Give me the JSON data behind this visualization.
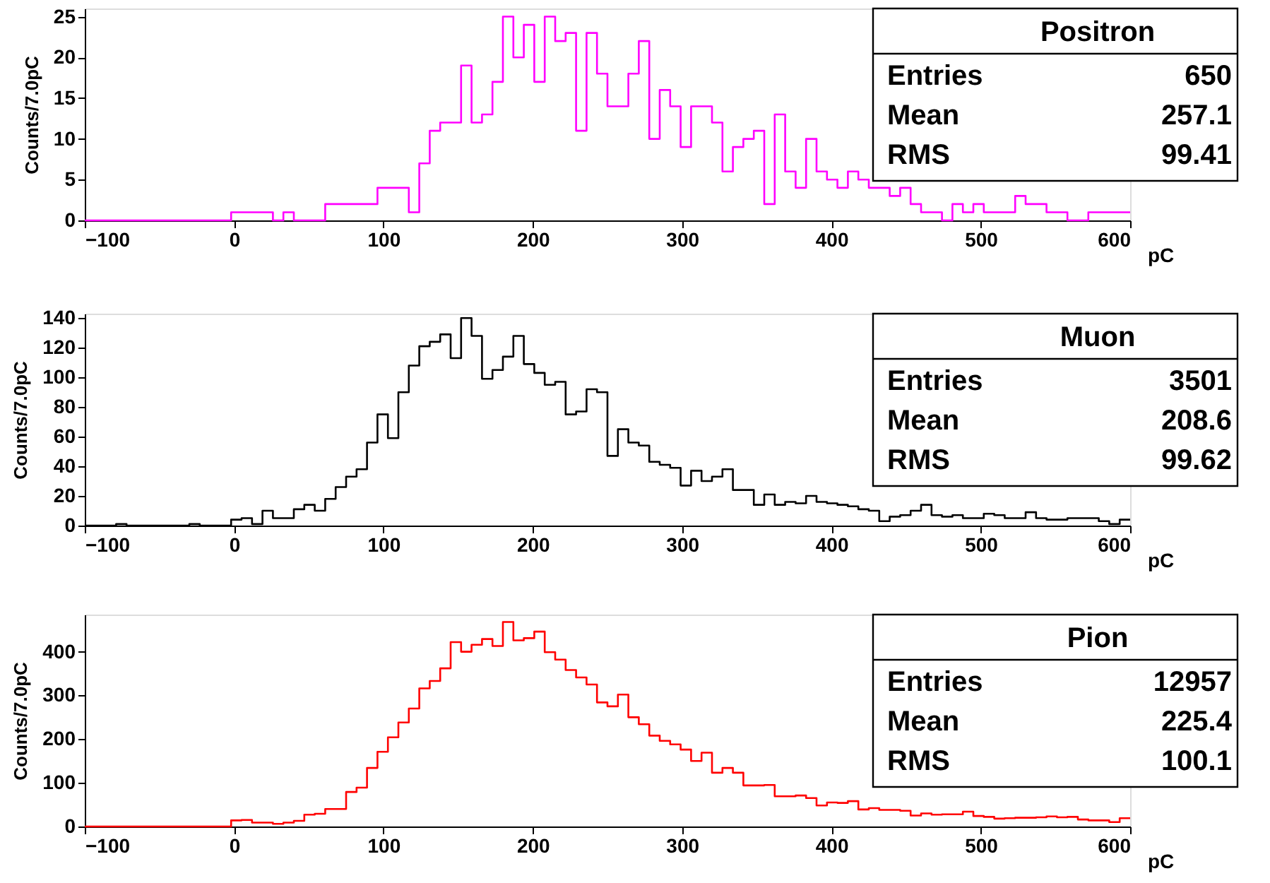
{
  "chart_data": [
    {
      "type": "histogram",
      "title": "Positron",
      "xlabel": "pC",
      "ylabel": "Counts/7.0pC",
      "color": "#ff00ff",
      "bins": [
        -100,
        -93,
        -86,
        -79,
        -72,
        -65,
        -58,
        -51,
        -44,
        -37,
        -30,
        -23,
        -16,
        -9,
        -2,
        5,
        12,
        19,
        26,
        33,
        40,
        47,
        54,
        61,
        68,
        75,
        82,
        89,
        96,
        103,
        110,
        117,
        124,
        131,
        138,
        145,
        152,
        159,
        166,
        173,
        180,
        187,
        194,
        201,
        208,
        215,
        222,
        229,
        236,
        243,
        250,
        257,
        264,
        271,
        278,
        285,
        292,
        299,
        306,
        313,
        320,
        327,
        334,
        341,
        348,
        355,
        362,
        369,
        376,
        383,
        390,
        397,
        404,
        411,
        418,
        425,
        432,
        439,
        446,
        453,
        460,
        467,
        474,
        481,
        488,
        495,
        502,
        509,
        516,
        523,
        530,
        537,
        544,
        551,
        558,
        565,
        572,
        579,
        586,
        593,
        600
      ],
      "values": [
        0,
        0,
        0,
        0,
        0,
        0,
        0,
        0,
        0,
        0,
        0,
        0,
        0,
        0,
        1,
        1,
        1,
        1,
        0,
        1,
        0,
        0,
        0,
        2,
        2,
        2,
        2,
        2,
        4,
        4,
        4,
        1,
        7,
        11,
        12,
        12,
        19,
        12,
        13,
        17,
        25,
        20,
        24,
        17,
        25,
        22,
        23,
        11,
        23,
        18,
        14,
        14,
        18,
        22,
        10,
        16,
        14,
        9,
        14,
        14,
        12,
        6,
        9,
        10,
        11,
        2,
        13,
        6,
        4,
        10,
        6,
        5,
        4,
        6,
        5,
        4,
        4,
        3,
        4,
        2,
        1,
        1,
        0,
        2,
        1,
        2,
        1,
        1,
        1,
        3,
        2,
        2,
        1,
        1,
        0,
        0,
        1,
        1,
        1,
        1
      ],
      "xlim": [
        -100,
        600
      ],
      "xticks": [
        -100,
        0,
        100,
        200,
        300,
        400,
        500,
        600
      ],
      "ylim": [
        0,
        26
      ],
      "yticks": [
        0,
        5,
        10,
        15,
        20,
        25
      ],
      "annotations": [
        "Entries",
        "650",
        "Mean",
        "257.1",
        "RMS",
        "99.41"
      ]
    },
    {
      "type": "histogram",
      "title": "Muon",
      "xlabel": "pC",
      "ylabel": "Counts/7.0pC",
      "color": "#000000",
      "bins": [
        -100,
        -93,
        -86,
        -79,
        -72,
        -65,
        -58,
        -51,
        -44,
        -37,
        -30,
        -23,
        -16,
        -9,
        -2,
        5,
        12,
        19,
        26,
        33,
        40,
        47,
        54,
        61,
        68,
        75,
        82,
        89,
        96,
        103,
        110,
        117,
        124,
        131,
        138,
        145,
        152,
        159,
        166,
        173,
        180,
        187,
        194,
        201,
        208,
        215,
        222,
        229,
        236,
        243,
        250,
        257,
        264,
        271,
        278,
        285,
        292,
        299,
        306,
        313,
        320,
        327,
        334,
        341,
        348,
        355,
        362,
        369,
        376,
        383,
        390,
        397,
        404,
        411,
        418,
        425,
        432,
        439,
        446,
        453,
        460,
        467,
        474,
        481,
        488,
        495,
        502,
        509,
        516,
        523,
        530,
        537,
        544,
        551,
        558,
        565,
        572,
        579,
        586,
        593,
        600
      ],
      "values": [
        0,
        0,
        0,
        1,
        0,
        0,
        0,
        0,
        0,
        0,
        1,
        0,
        0,
        0,
        4,
        5,
        1,
        10,
        5,
        5,
        11,
        14,
        10,
        18,
        26,
        33,
        38,
        56,
        75,
        59,
        90,
        108,
        121,
        124,
        129,
        113,
        140,
        128,
        99,
        105,
        114,
        128,
        109,
        103,
        95,
        97,
        75,
        77,
        92,
        90,
        47,
        65,
        56,
        54,
        43,
        41,
        39,
        27,
        37,
        30,
        33,
        38,
        24,
        24,
        14,
        21,
        14,
        16,
        15,
        20,
        16,
        15,
        14,
        13,
        11,
        10,
        3,
        6,
        7,
        10,
        14,
        7,
        6,
        7,
        5,
        5,
        8,
        7,
        5,
        5,
        9,
        5,
        4,
        4,
        5,
        5,
        5,
        3,
        1,
        4
      ],
      "xlim": [
        -100,
        600
      ],
      "xticks": [
        -100,
        0,
        100,
        200,
        300,
        400,
        500,
        600
      ],
      "ylim": [
        0,
        143
      ],
      "yticks": [
        0,
        20,
        40,
        60,
        80,
        100,
        120,
        140
      ],
      "annotations": [
        "Entries",
        "3501",
        "Mean",
        "208.6",
        "RMS",
        "99.62"
      ]
    },
    {
      "type": "histogram",
      "title": "Pion",
      "xlabel": "pC",
      "ylabel": "Counts/7.0pC",
      "color": "#ff0000",
      "bins": [
        -100,
        -93,
        -86,
        -79,
        -72,
        -65,
        -58,
        -51,
        -44,
        -37,
        -30,
        -23,
        -16,
        -9,
        -2,
        5,
        12,
        19,
        26,
        33,
        40,
        47,
        54,
        61,
        68,
        75,
        82,
        89,
        96,
        103,
        110,
        117,
        124,
        131,
        138,
        145,
        152,
        159,
        166,
        173,
        180,
        187,
        194,
        201,
        208,
        215,
        222,
        229,
        236,
        243,
        250,
        257,
        264,
        271,
        278,
        285,
        292,
        299,
        306,
        313,
        320,
        327,
        334,
        341,
        348,
        355,
        362,
        369,
        376,
        383,
        390,
        397,
        404,
        411,
        418,
        425,
        432,
        439,
        446,
        453,
        460,
        467,
        474,
        481,
        488,
        495,
        502,
        509,
        516,
        523,
        530,
        537,
        544,
        551,
        558,
        565,
        572,
        579,
        586,
        593,
        600
      ],
      "values": [
        0,
        0,
        0,
        0,
        0,
        0,
        0,
        0,
        0,
        0,
        0,
        0,
        0,
        0,
        14,
        15,
        9,
        9,
        6,
        9,
        13,
        27,
        29,
        40,
        40,
        79,
        89,
        134,
        171,
        204,
        238,
        270,
        316,
        333,
        362,
        422,
        400,
        416,
        429,
        413,
        468,
        426,
        431,
        446,
        399,
        382,
        358,
        341,
        325,
        284,
        275,
        302,
        250,
        234,
        208,
        196,
        188,
        176,
        150,
        169,
        123,
        134,
        123,
        94,
        94,
        95,
        69,
        69,
        71,
        65,
        48,
        55,
        54,
        58,
        39,
        42,
        38,
        38,
        36,
        25,
        30,
        27,
        28,
        28,
        34,
        24,
        22,
        18,
        19,
        20,
        20,
        21,
        23,
        21,
        22,
        16,
        14,
        14,
        10,
        19
      ],
      "xlim": [
        -100,
        600
      ],
      "xticks": [
        -100,
        0,
        100,
        200,
        300,
        400,
        500,
        600
      ],
      "ylim": [
        0,
        485
      ],
      "yticks": [
        0,
        100,
        200,
        300,
        400
      ],
      "annotations": [
        "Entries",
        "12957",
        "Mean",
        "225.4",
        "RMS",
        "100.1"
      ]
    }
  ]
}
